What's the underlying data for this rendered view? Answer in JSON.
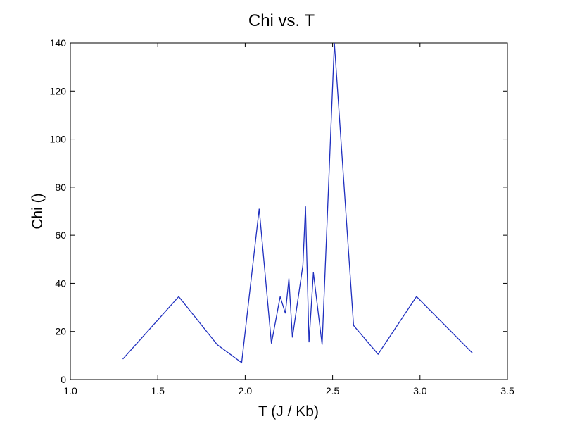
{
  "chart_data": {
    "type": "line",
    "title": "Chi vs. T",
    "xlabel": "T (J / Kb)",
    "ylabel": "Chi ()",
    "xlim": [
      1.0,
      3.5
    ],
    "ylim": [
      0,
      140
    ],
    "xticks": [
      1.0,
      1.5,
      2.0,
      2.5,
      3.0,
      3.5
    ],
    "xtick_labels": [
      "1.0",
      "1.5",
      "2.0",
      "2.5",
      "3.0",
      "3.5"
    ],
    "yticks": [
      0,
      20,
      40,
      60,
      80,
      100,
      120,
      140
    ],
    "ytick_labels": [
      "0",
      "20",
      "40",
      "60",
      "80",
      "100",
      "120",
      "140"
    ],
    "grid": false,
    "line_color": "#1f2fbf",
    "series": [
      {
        "x": [
          1.3,
          1.62,
          1.84,
          1.98,
          2.08,
          2.15,
          2.2,
          2.23,
          2.25,
          2.27,
          2.33,
          2.345,
          2.365,
          2.39,
          2.44,
          2.51,
          2.62,
          2.76,
          2.98,
          3.3
        ],
        "values": [
          8.5,
          34.5,
          14.5,
          7.0,
          71.0,
          15.0,
          34.5,
          27.5,
          42.0,
          17.5,
          47.5,
          72.0,
          15.5,
          44.5,
          14.5,
          141.0,
          22.5,
          10.5,
          34.5,
          11.0
        ]
      }
    ]
  }
}
